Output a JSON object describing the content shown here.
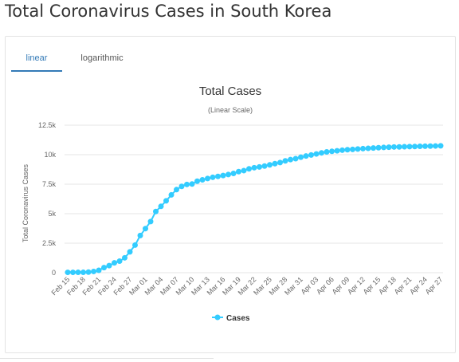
{
  "page": {
    "title": "Total Coronavirus Cases in South Korea"
  },
  "tabs": [
    {
      "label": "linear",
      "active": true
    },
    {
      "label": "logarithmic",
      "active": false
    }
  ],
  "colors": {
    "accent": "#337ab7",
    "series": "#33ccff",
    "grid": "#e6e6e6"
  },
  "chart_data": {
    "type": "line",
    "title": "Total Cases",
    "subtitle": "(Linear Scale)",
    "ylabel": "Total Coronavirus Cases",
    "xlabel": "",
    "ylim": [
      0,
      12500
    ],
    "y_ticks": [
      0,
      2500,
      5000,
      7500,
      10000,
      12500
    ],
    "y_tick_labels": [
      "0",
      "2.5k",
      "5k",
      "7.5k",
      "10k",
      "12.5k"
    ],
    "x_tick_labels": [
      "Feb 15",
      "Feb 18",
      "Feb 21",
      "Feb 24",
      "Feb 27",
      "Mar 01",
      "Mar 04",
      "Mar 07",
      "Mar 10",
      "Mar 13",
      "Mar 16",
      "Mar 19",
      "Mar 22",
      "Mar 25",
      "Mar 28",
      "Mar 31",
      "Apr 03",
      "Apr 06",
      "Apr 09",
      "Apr 12",
      "Apr 15",
      "Apr 18",
      "Apr 21",
      "Apr 24",
      "Apr 27"
    ],
    "grid": true,
    "legend": "bottom",
    "series": [
      {
        "name": "Cases",
        "x": [
          "Feb 15",
          "Feb 16",
          "Feb 17",
          "Feb 18",
          "Feb 19",
          "Feb 20",
          "Feb 21",
          "Feb 22",
          "Feb 23",
          "Feb 24",
          "Feb 25",
          "Feb 26",
          "Feb 27",
          "Feb 28",
          "Feb 29",
          "Mar 01",
          "Mar 02",
          "Mar 03",
          "Mar 04",
          "Mar 05",
          "Mar 06",
          "Mar 07",
          "Mar 08",
          "Mar 09",
          "Mar 10",
          "Mar 11",
          "Mar 12",
          "Mar 13",
          "Mar 14",
          "Mar 15",
          "Mar 16",
          "Mar 17",
          "Mar 18",
          "Mar 19",
          "Mar 20",
          "Mar 21",
          "Mar 22",
          "Mar 23",
          "Mar 24",
          "Mar 25",
          "Mar 26",
          "Mar 27",
          "Mar 28",
          "Mar 29",
          "Mar 30",
          "Mar 31",
          "Apr 01",
          "Apr 02",
          "Apr 03",
          "Apr 04",
          "Apr 05",
          "Apr 06",
          "Apr 07",
          "Apr 08",
          "Apr 09",
          "Apr 10",
          "Apr 11",
          "Apr 12",
          "Apr 13",
          "Apr 14",
          "Apr 15",
          "Apr 16",
          "Apr 17",
          "Apr 18",
          "Apr 19",
          "Apr 20",
          "Apr 21",
          "Apr 22",
          "Apr 23",
          "Apr 24",
          "Apr 25",
          "Apr 26",
          "Apr 27"
        ],
        "values": [
          28,
          29,
          30,
          31,
          51,
          104,
          204,
          433,
          602,
          833,
          977,
          1261,
          1766,
          2337,
          3150,
          3736,
          4335,
          5186,
          5621,
          6088,
          6593,
          7041,
          7313,
          7478,
          7513,
          7755,
          7869,
          7979,
          8086,
          8162,
          8236,
          8320,
          8413,
          8565,
          8652,
          8799,
          8897,
          8961,
          9037,
          9137,
          9241,
          9332,
          9478,
          9583,
          9661,
          9786,
          9887,
          9976,
          10062,
          10156,
          10237,
          10284,
          10331,
          10384,
          10423,
          10450,
          10480,
          10512,
          10537,
          10564,
          10591,
          10613,
          10635,
          10653,
          10661,
          10674,
          10683,
          10694,
          10708,
          10718,
          10728,
          10738,
          10752
        ]
      }
    ]
  }
}
